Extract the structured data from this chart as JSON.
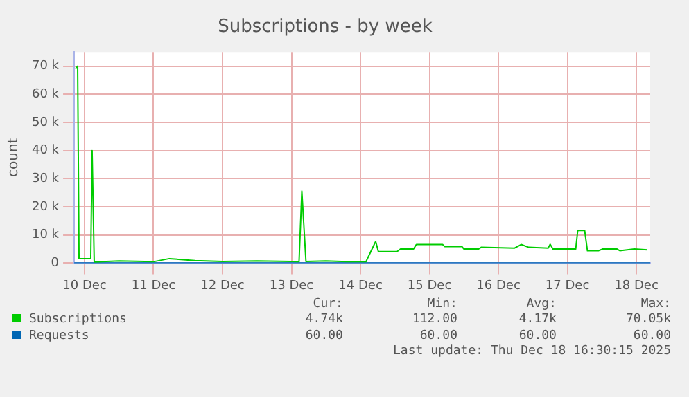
{
  "chart_data": {
    "type": "line",
    "title": "Subscriptions - by week",
    "ylabel": "count",
    "xlim": [
      "2025-12-10T08:24",
      "2025-12-18T16:48"
    ],
    "xticks": [
      {
        "value": "2025-12-10T12:00",
        "label": "10 Dec"
      },
      {
        "value": "2025-12-11T12:00",
        "label": "11 Dec"
      },
      {
        "value": "2025-12-12T12:00",
        "label": "12 Dec"
      },
      {
        "value": "2025-12-13T12:00",
        "label": "13 Dec"
      },
      {
        "value": "2025-12-14T12:00",
        "label": "14 Dec"
      },
      {
        "value": "2025-12-15T12:00",
        "label": "15 Dec"
      },
      {
        "value": "2025-12-16T12:00",
        "label": "16 Dec"
      },
      {
        "value": "2025-12-17T12:00",
        "label": "17 Dec"
      },
      {
        "value": "2025-12-18T12:00",
        "label": "18 Dec"
      }
    ],
    "ylim": [
      0,
      75000
    ],
    "yticks": [
      0,
      {
        "value": 10000,
        "label": "10 k"
      },
      {
        "value": 20000,
        "label": "20 k"
      },
      {
        "value": 30000,
        "label": "30 k"
      },
      {
        "value": 40000,
        "label": "40 k"
      },
      {
        "value": 50000,
        "label": "50 k"
      },
      {
        "value": 60000,
        "label": "60 k"
      },
      {
        "value": 70000,
        "label": "70 k"
      }
    ],
    "series": [
      {
        "name": "Subscriptions",
        "color": "#00cc00",
        "x": [
          "2025-12-10T08:53",
          "2025-12-10T09:36",
          "2025-12-10T10:05",
          "2025-12-10T14:10",
          "2025-12-10T14:38",
          "2025-12-10T15:22",
          "2025-12-11T00:00",
          "2025-12-11T12:00",
          "2025-12-11T17:31",
          "2025-12-12T02:24",
          "2025-12-12T12:00",
          "2025-12-13T00:00",
          "2025-12-13T12:00",
          "2025-12-13T14:38",
          "2025-12-13T15:36",
          "2025-12-13T17:02",
          "2025-12-14T00:00",
          "2025-12-14T07:12",
          "2025-12-14T13:55",
          "2025-12-14T15:36",
          "2025-12-14T17:17",
          "2025-12-14T18:14",
          "2025-12-15T00:43",
          "2025-12-15T01:55",
          "2025-12-15T06:29",
          "2025-12-15T07:26",
          "2025-12-15T16:34",
          "2025-12-15T17:17",
          "2025-12-15T23:17",
          "2025-12-16T00:00",
          "2025-12-16T05:02",
          "2025-12-16T06:00",
          "2025-12-16T17:31",
          "2025-12-16T19:55",
          "2025-12-16T22:34",
          "2025-12-17T05:17",
          "2025-12-17T06:00",
          "2025-12-17T06:58",
          "2025-12-17T14:53",
          "2025-12-17T15:36",
          "2025-12-17T18:00",
          "2025-12-17T18:58",
          "2025-12-17T22:48",
          "2025-12-18T00:14",
          "2025-12-18T05:17",
          "2025-12-18T06:14",
          "2025-12-18T11:17",
          "2025-12-18T15:50"
        ],
        "values": [
          69000,
          70000,
          1600,
          1600,
          40000,
          400,
          800,
          500,
          1600,
          900,
          600,
          800,
          600,
          500,
          25600,
          600,
          800,
          500,
          500,
          4100,
          7700,
          4100,
          4100,
          5000,
          5000,
          6600,
          6600,
          5900,
          5900,
          5000,
          5000,
          5600,
          5300,
          6600,
          5600,
          5300,
          6700,
          5000,
          5000,
          11600,
          11600,
          4400,
          4400,
          5000,
          5000,
          4400,
          5000,
          4700
        ]
      },
      {
        "name": "Requests",
        "color": "#0066b3",
        "x": [
          "2025-12-10T08:24",
          "2025-12-18T16:48"
        ],
        "values": [
          60,
          60
        ]
      }
    ],
    "grid": true,
    "legend": "bottom",
    "marker": "none",
    "line_style": "solid",
    "annotations": [
      "Cur:",
      "Min:",
      "Avg:",
      "Max:",
      "4.74k",
      "112.00",
      "4.17k",
      "70.05k",
      "60.00",
      "60.00",
      "60.00",
      "60.00",
      "Last update: Thu Dec 18 16:30:15 2025"
    ]
  }
}
